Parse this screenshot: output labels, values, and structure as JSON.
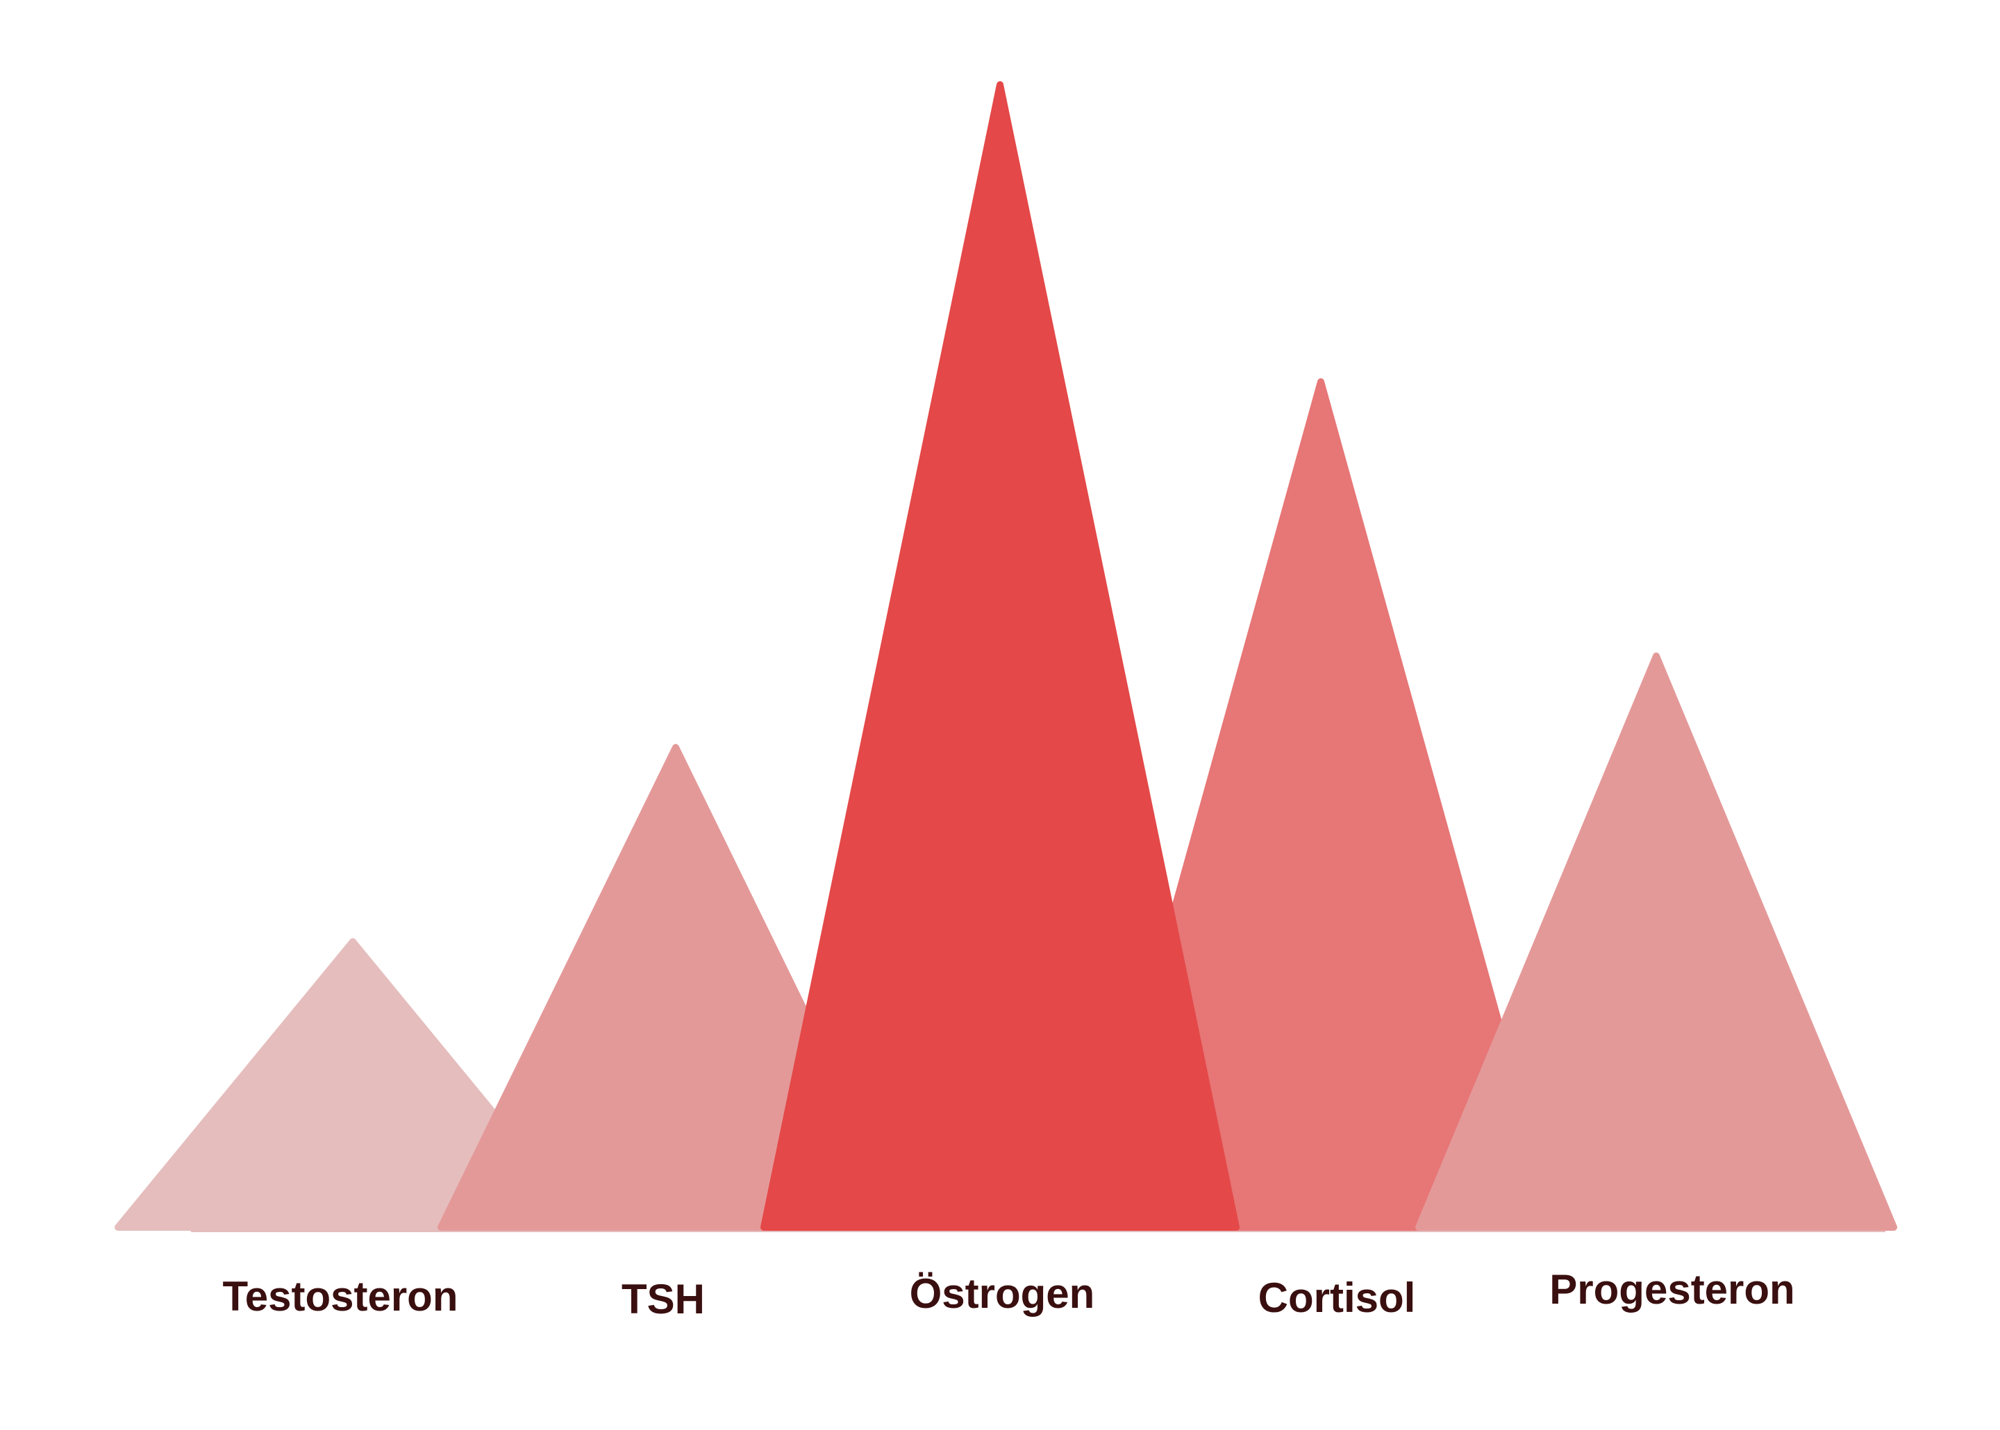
{
  "chart_data": {
    "type": "bar",
    "style": "triangle-peaks",
    "title": "",
    "xlabel": "",
    "ylabel": "",
    "grid": false,
    "categories": [
      "Testosteron",
      "TSH",
      "Östrogen",
      "Cortisol",
      "Progesteron"
    ],
    "values": [
      25,
      42,
      100,
      74,
      50
    ],
    "ylim": [
      0,
      100
    ],
    "colors": [
      "#e5bdbd",
      "#e49999",
      "#e44848",
      "#e77676",
      "#e49999"
    ]
  }
}
